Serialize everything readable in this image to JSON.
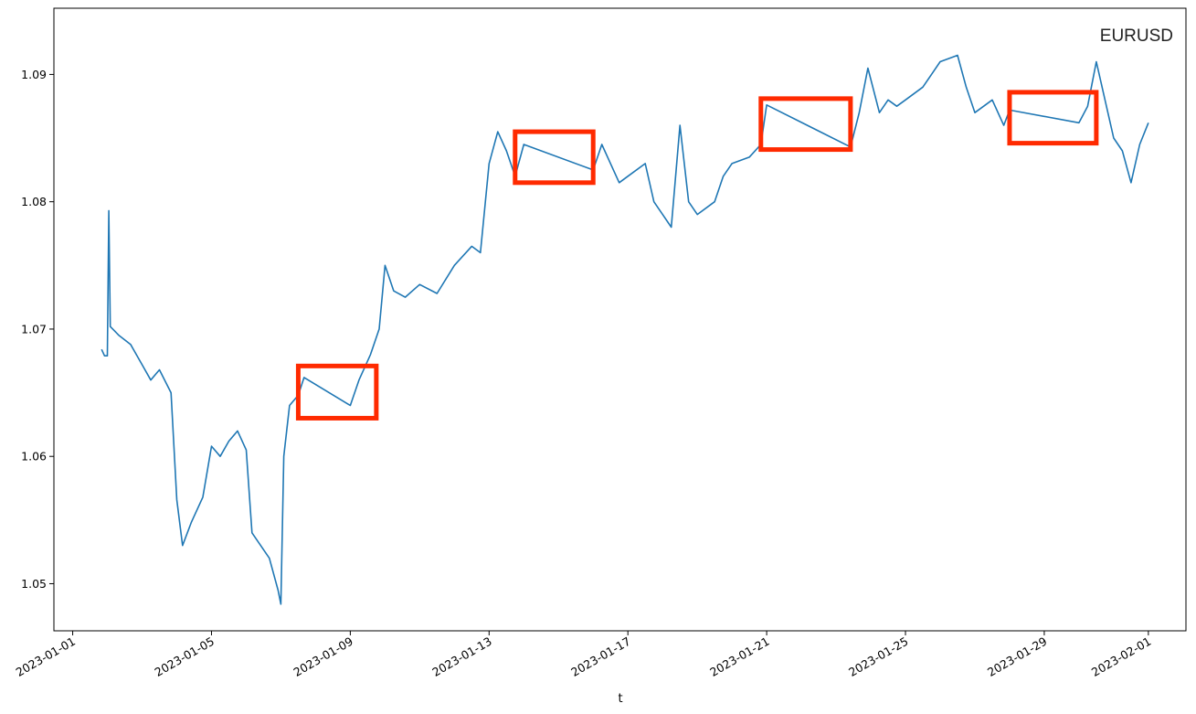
{
  "chart_data": {
    "type": "line",
    "title": "",
    "xlabel": "t",
    "ylabel": "",
    "legend": "EURUSD",
    "legend_placement": "top-right",
    "grid": false,
    "xlim": [
      "2022-12-31T11:00",
      "2023-02-02T02:00"
    ],
    "ylim": [
      1.0463,
      1.0952
    ],
    "x_ticks": [
      "2023-01-01",
      "2023-01-05",
      "2023-01-09",
      "2023-01-13",
      "2023-01-17",
      "2023-01-21",
      "2023-01-25",
      "2023-01-29",
      "2023-02-01"
    ],
    "y_ticks": [
      "1.05",
      "1.06",
      "1.07",
      "1.08",
      "1.09"
    ],
    "series": [
      {
        "name": "EURUSD",
        "color": "#1f77b4",
        "points": [
          [
            "2023-01-01T20:00",
            1.0684
          ],
          [
            "2023-01-01T22:00",
            1.0679
          ],
          [
            "2023-01-02T00:00",
            1.0679
          ],
          [
            "2023-01-02T01:00",
            1.0793
          ],
          [
            "2023-01-02T02:00",
            1.0702
          ],
          [
            "2023-01-02T08:00",
            1.0695
          ],
          [
            "2023-01-02T16:00",
            1.0688
          ],
          [
            "2023-01-03T00:00",
            1.0672
          ],
          [
            "2023-01-03T06:00",
            1.066
          ],
          [
            "2023-01-03T12:00",
            1.0668
          ],
          [
            "2023-01-03T20:00",
            1.065
          ],
          [
            "2023-01-04T00:00",
            1.0566
          ],
          [
            "2023-01-04T04:00",
            1.053
          ],
          [
            "2023-01-04T10:00",
            1.0548
          ],
          [
            "2023-01-04T18:00",
            1.0568
          ],
          [
            "2023-01-05T00:00",
            1.0608
          ],
          [
            "2023-01-05T06:00",
            1.06
          ],
          [
            "2023-01-05T12:00",
            1.0612
          ],
          [
            "2023-01-05T18:00",
            1.062
          ],
          [
            "2023-01-06T00:00",
            1.0605
          ],
          [
            "2023-01-06T04:00",
            1.054
          ],
          [
            "2023-01-06T10:00",
            1.053
          ],
          [
            "2023-01-06T16:00",
            1.052
          ],
          [
            "2023-01-06T22:00",
            1.0495
          ],
          [
            "2023-01-07T00:00",
            1.0484
          ],
          [
            "2023-01-07T02:00",
            1.06
          ],
          [
            "2023-01-07T06:00",
            1.064
          ],
          [
            "2023-01-07T12:00",
            1.0648
          ],
          [
            "2023-01-07T16:00",
            1.0662
          ],
          [
            "2023-01-09T00:00",
            1.064
          ],
          [
            "2023-01-09T06:00",
            1.066
          ],
          [
            "2023-01-09T14:00",
            1.068
          ],
          [
            "2023-01-09T20:00",
            1.07
          ],
          [
            "2023-01-10T00:00",
            1.075
          ],
          [
            "2023-01-10T06:00",
            1.073
          ],
          [
            "2023-01-10T14:00",
            1.0725
          ],
          [
            "2023-01-11T00:00",
            1.0735
          ],
          [
            "2023-01-11T12:00",
            1.0728
          ],
          [
            "2023-01-12T00:00",
            1.075
          ],
          [
            "2023-01-12T12:00",
            1.0765
          ],
          [
            "2023-01-12T18:00",
            1.076
          ],
          [
            "2023-01-13T00:00",
            1.083
          ],
          [
            "2023-01-13T06:00",
            1.0855
          ],
          [
            "2023-01-13T12:00",
            1.084
          ],
          [
            "2023-01-13T18:00",
            1.082
          ],
          [
            "2023-01-14T00:00",
            1.0845
          ],
          [
            "2023-01-16T00:00",
            1.0825
          ],
          [
            "2023-01-16T06:00",
            1.0845
          ],
          [
            "2023-01-16T12:00",
            1.083
          ],
          [
            "2023-01-16T18:00",
            1.0815
          ],
          [
            "2023-01-17T00:00",
            1.082
          ],
          [
            "2023-01-17T12:00",
            1.083
          ],
          [
            "2023-01-17T18:00",
            1.08
          ],
          [
            "2023-01-18T00:00",
            1.079
          ],
          [
            "2023-01-18T06:00",
            1.078
          ],
          [
            "2023-01-18T12:00",
            1.086
          ],
          [
            "2023-01-18T18:00",
            1.08
          ],
          [
            "2023-01-19T00:00",
            1.079
          ],
          [
            "2023-01-19T12:00",
            1.08
          ],
          [
            "2023-01-19T18:00",
            1.082
          ],
          [
            "2023-01-20T00:00",
            1.083
          ],
          [
            "2023-01-20T12:00",
            1.0835
          ],
          [
            "2023-01-20T20:00",
            1.0845
          ],
          [
            "2023-01-21T00:00",
            1.0876
          ],
          [
            "2023-01-23T10:00",
            1.0843
          ],
          [
            "2023-01-23T16:00",
            1.087
          ],
          [
            "2023-01-23T22:00",
            1.0905
          ],
          [
            "2023-01-24T06:00",
            1.087
          ],
          [
            "2023-01-24T12:00",
            1.088
          ],
          [
            "2023-01-24T18:00",
            1.0875
          ],
          [
            "2023-01-25T00:00",
            1.088
          ],
          [
            "2023-01-25T12:00",
            1.089
          ],
          [
            "2023-01-25T18:00",
            1.09
          ],
          [
            "2023-01-26T00:00",
            1.091
          ],
          [
            "2023-01-26T12:00",
            1.0915
          ],
          [
            "2023-01-26T18:00",
            1.089
          ],
          [
            "2023-01-27T00:00",
            1.087
          ],
          [
            "2023-01-27T12:00",
            1.088
          ],
          [
            "2023-01-27T20:00",
            1.086
          ],
          [
            "2023-01-28T00:00",
            1.0872
          ],
          [
            "2023-01-30T00:00",
            1.0862
          ],
          [
            "2023-01-30T06:00",
            1.0875
          ],
          [
            "2023-01-30T12:00",
            1.091
          ],
          [
            "2023-01-30T18:00",
            1.088
          ],
          [
            "2023-01-31T00:00",
            1.085
          ],
          [
            "2023-01-31T06:00",
            1.084
          ],
          [
            "2023-01-31T12:00",
            1.0815
          ],
          [
            "2023-01-31T18:00",
            1.0845
          ],
          [
            "2023-02-01T00:00",
            1.0862
          ]
        ]
      }
    ],
    "annotations": [
      {
        "type": "rectangle",
        "color": "#ff2a00",
        "x_start": "2023-01-07T12:00",
        "x_end": "2023-01-09T18:00",
        "y_low": 1.063,
        "y_high": 1.0671
      },
      {
        "type": "rectangle",
        "color": "#ff2a00",
        "x_start": "2023-01-13T18:00",
        "x_end": "2023-01-16T00:00",
        "y_low": 1.0815,
        "y_high": 1.0855
      },
      {
        "type": "rectangle",
        "color": "#ff2a00",
        "x_start": "2023-01-20T20:00",
        "x_end": "2023-01-23T10:00",
        "y_low": 1.0841,
        "y_high": 1.0881
      },
      {
        "type": "rectangle",
        "color": "#ff2a00",
        "x_start": "2023-01-28T00:00",
        "x_end": "2023-01-30T12:00",
        "y_low": 1.0846,
        "y_high": 1.0886
      }
    ]
  }
}
